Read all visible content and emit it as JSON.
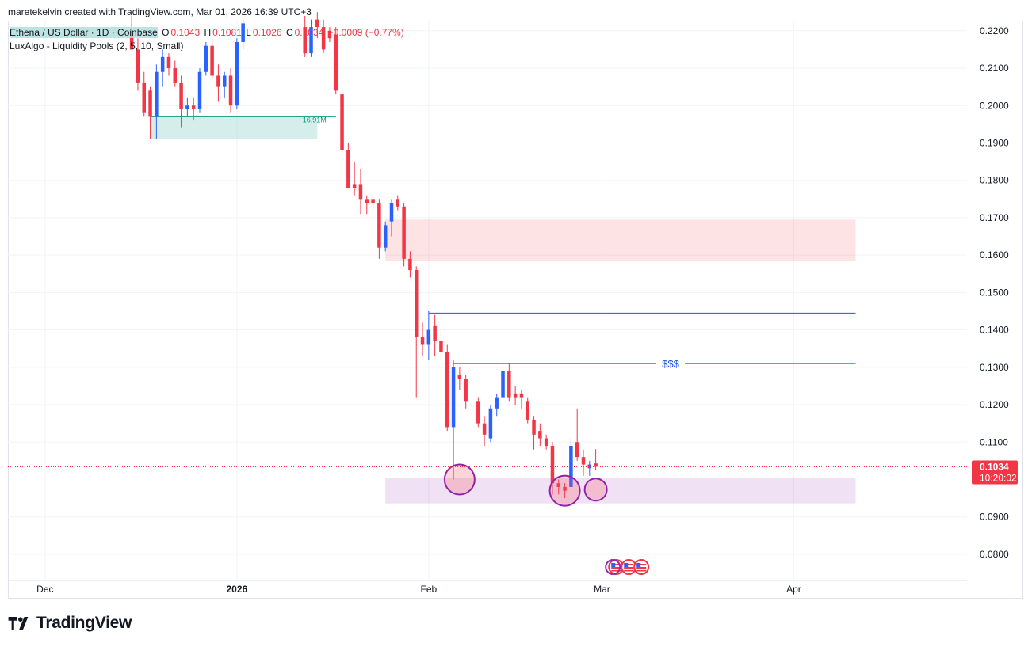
{
  "credit": "maretekelvin created with TradingView.com, Mar 01, 2026 16:39 UTC+3",
  "legend": {
    "symbol": "Ethena / US Dollar · 1D · Coinbase",
    "o_label": "O",
    "o": "0.1043",
    "h_label": "H",
    "h": "0.1081",
    "l_label": "L",
    "l": "0.1026",
    "c_label": "C",
    "c": "0.1034",
    "change": "−0.0009 (−0.77%)",
    "indicator": "LuxAlgo - Liquidity Pools (2, 5, 10, Small)"
  },
  "brand": "TradingView",
  "colors": {
    "up": "#2962ff",
    "down": "#f23645",
    "grid": "#f0f3fa",
    "level": "#1e53e5"
  },
  "chart_data": {
    "type": "candlestick",
    "title": "Ethena / US Dollar · 1D · Coinbase",
    "y_range": [
      0.073,
      0.2225
    ],
    "y_ticks": [
      "0.2200",
      "0.2100",
      "0.2000",
      "0.1900",
      "0.1800",
      "0.1700",
      "0.1600",
      "0.1500",
      "0.1400",
      "0.1300",
      "0.1200",
      "0.1100",
      "0.0900",
      "0.0800"
    ],
    "x_ticks": [
      {
        "label": "Dec",
        "day": 0
      },
      {
        "label": "2026",
        "day": 31
      },
      {
        "label": "Feb",
        "day": 62
      },
      {
        "label": "Mar",
        "day": 90
      },
      {
        "label": "Apr",
        "day": 121
      }
    ],
    "x_day_range": [
      -6,
      149
    ],
    "candles": [
      {
        "d": 14,
        "o": 0.22,
        "h": 0.224,
        "l": 0.215,
        "c": 0.215
      },
      {
        "d": 15,
        "o": 0.215,
        "h": 0.218,
        "l": 0.204,
        "c": 0.206
      },
      {
        "d": 16,
        "o": 0.206,
        "h": 0.209,
        "l": 0.197,
        "c": 0.198
      },
      {
        "d": 17,
        "o": 0.204,
        "h": 0.205,
        "l": 0.191,
        "c": 0.197
      },
      {
        "d": 18,
        "o": 0.197,
        "h": 0.211,
        "l": 0.191,
        "c": 0.209
      },
      {
        "d": 19,
        "o": 0.209,
        "h": 0.215,
        "l": 0.205,
        "c": 0.213
      },
      {
        "d": 20,
        "o": 0.213,
        "h": 0.214,
        "l": 0.208,
        "c": 0.21
      },
      {
        "d": 21,
        "o": 0.21,
        "h": 0.212,
        "l": 0.205,
        "c": 0.206
      },
      {
        "d": 22,
        "o": 0.206,
        "h": 0.208,
        "l": 0.194,
        "c": 0.199
      },
      {
        "d": 23,
        "o": 0.199,
        "h": 0.202,
        "l": 0.197,
        "c": 0.2
      },
      {
        "d": 24,
        "o": 0.2,
        "h": 0.202,
        "l": 0.196,
        "c": 0.199
      },
      {
        "d": 25,
        "o": 0.199,
        "h": 0.21,
        "l": 0.198,
        "c": 0.209
      },
      {
        "d": 26,
        "o": 0.209,
        "h": 0.217,
        "l": 0.208,
        "c": 0.216
      },
      {
        "d": 27,
        "o": 0.216,
        "h": 0.218,
        "l": 0.207,
        "c": 0.208
      },
      {
        "d": 28,
        "o": 0.208,
        "h": 0.211,
        "l": 0.201,
        "c": 0.205
      },
      {
        "d": 29,
        "o": 0.205,
        "h": 0.209,
        "l": 0.202,
        "c": 0.208
      },
      {
        "d": 30,
        "o": 0.208,
        "h": 0.21,
        "l": 0.198,
        "c": 0.2
      },
      {
        "d": 31,
        "o": 0.2,
        "h": 0.218,
        "l": 0.199,
        "c": 0.217
      },
      {
        "d": 32,
        "o": 0.217,
        "h": 0.223,
        "l": 0.215,
        "c": 0.222
      },
      {
        "d": 42,
        "o": 0.221,
        "h": 0.224,
        "l": 0.213,
        "c": 0.214
      },
      {
        "d": 43,
        "o": 0.214,
        "h": 0.223,
        "l": 0.213,
        "c": 0.221
      },
      {
        "d": 44,
        "o": 0.223,
        "h": 0.225,
        "l": 0.218,
        "c": 0.221
      },
      {
        "d": 45,
        "o": 0.221,
        "h": 0.223,
        "l": 0.214,
        "c": 0.215
      },
      {
        "d": 46,
        "o": 0.22,
        "h": 0.221,
        "l": 0.217,
        "c": 0.218
      },
      {
        "d": 47,
        "o": 0.219,
        "h": 0.221,
        "l": 0.203,
        "c": 0.204
      },
      {
        "d": 48,
        "o": 0.203,
        "h": 0.205,
        "l": 0.187,
        "c": 0.188
      },
      {
        "d": 49,
        "o": 0.188,
        "h": 0.19,
        "l": 0.178,
        "c": 0.178
      },
      {
        "d": 50,
        "o": 0.179,
        "h": 0.185,
        "l": 0.176,
        "c": 0.178
      },
      {
        "d": 51,
        "o": 0.179,
        "h": 0.183,
        "l": 0.171,
        "c": 0.175
      },
      {
        "d": 52,
        "o": 0.175,
        "h": 0.176,
        "l": 0.171,
        "c": 0.174
      },
      {
        "d": 53,
        "o": 0.175,
        "h": 0.176,
        "l": 0.172,
        "c": 0.174
      },
      {
        "d": 54,
        "o": 0.174,
        "h": 0.175,
        "l": 0.159,
        "c": 0.162
      },
      {
        "d": 55,
        "o": 0.162,
        "h": 0.169,
        "l": 0.161,
        "c": 0.168
      },
      {
        "d": 56,
        "o": 0.169,
        "h": 0.175,
        "l": 0.165,
        "c": 0.174
      },
      {
        "d": 57,
        "o": 0.175,
        "h": 0.176,
        "l": 0.172,
        "c": 0.173
      },
      {
        "d": 58,
        "o": 0.173,
        "h": 0.174,
        "l": 0.157,
        "c": 0.159
      },
      {
        "d": 59,
        "o": 0.159,
        "h": 0.161,
        "l": 0.154,
        "c": 0.156
      },
      {
        "d": 60,
        "o": 0.156,
        "h": 0.157,
        "l": 0.122,
        "c": 0.138
      },
      {
        "d": 61,
        "o": 0.138,
        "h": 0.142,
        "l": 0.133,
        "c": 0.136
      },
      {
        "d": 62,
        "o": 0.136,
        "h": 0.145,
        "l": 0.132,
        "c": 0.14
      },
      {
        "d": 63,
        "o": 0.141,
        "h": 0.144,
        "l": 0.133,
        "c": 0.137
      },
      {
        "d": 64,
        "o": 0.137,
        "h": 0.14,
        "l": 0.132,
        "c": 0.134
      },
      {
        "d": 65,
        "o": 0.134,
        "h": 0.136,
        "l": 0.113,
        "c": 0.114
      },
      {
        "d": 66,
        "o": 0.114,
        "h": 0.132,
        "l": 0.1,
        "c": 0.13
      },
      {
        "d": 67,
        "o": 0.128,
        "h": 0.13,
        "l": 0.124,
        "c": 0.127
      },
      {
        "d": 68,
        "o": 0.127,
        "h": 0.128,
        "l": 0.119,
        "c": 0.121
      },
      {
        "d": 69,
        "o": 0.12,
        "h": 0.122,
        "l": 0.118,
        "c": 0.12
      },
      {
        "d": 70,
        "o": 0.121,
        "h": 0.122,
        "l": 0.114,
        "c": 0.115
      },
      {
        "d": 71,
        "o": 0.115,
        "h": 0.117,
        "l": 0.109,
        "c": 0.112
      },
      {
        "d": 72,
        "o": 0.111,
        "h": 0.12,
        "l": 0.11,
        "c": 0.119
      },
      {
        "d": 73,
        "o": 0.119,
        "h": 0.123,
        "l": 0.117,
        "c": 0.122
      },
      {
        "d": 74,
        "o": 0.122,
        "h": 0.131,
        "l": 0.121,
        "c": 0.129
      },
      {
        "d": 75,
        "o": 0.129,
        "h": 0.131,
        "l": 0.121,
        "c": 0.122
      },
      {
        "d": 76,
        "o": 0.123,
        "h": 0.125,
        "l": 0.12,
        "c": 0.122
      },
      {
        "d": 77,
        "o": 0.123,
        "h": 0.124,
        "l": 0.119,
        "c": 0.122
      },
      {
        "d": 78,
        "o": 0.121,
        "h": 0.122,
        "l": 0.115,
        "c": 0.116
      },
      {
        "d": 79,
        "o": 0.116,
        "h": 0.117,
        "l": 0.108,
        "c": 0.112
      },
      {
        "d": 80,
        "o": 0.113,
        "h": 0.115,
        "l": 0.109,
        "c": 0.111
      },
      {
        "d": 81,
        "o": 0.111,
        "h": 0.112,
        "l": 0.108,
        "c": 0.109
      },
      {
        "d": 82,
        "o": 0.109,
        "h": 0.11,
        "l": 0.096,
        "c": 0.099
      },
      {
        "d": 83,
        "o": 0.099,
        "h": 0.1,
        "l": 0.096,
        "c": 0.098
      },
      {
        "d": 84,
        "o": 0.098,
        "h": 0.099,
        "l": 0.095,
        "c": 0.097
      },
      {
        "d": 85,
        "o": 0.098,
        "h": 0.111,
        "l": 0.098,
        "c": 0.109
      },
      {
        "d": 86,
        "o": 0.11,
        "h": 0.119,
        "l": 0.105,
        "c": 0.106
      },
      {
        "d": 87,
        "o": 0.106,
        "h": 0.108,
        "l": 0.101,
        "c": 0.104
      },
      {
        "d": 88,
        "o": 0.103,
        "h": 0.105,
        "l": 0.101,
        "c": 0.104
      },
      {
        "d": 89,
        "o": 0.1043,
        "h": 0.1081,
        "l": 0.1026,
        "c": 0.1034
      }
    ],
    "zones": [
      {
        "name": "liquidity-zone-top",
        "from_day": 17,
        "to_day": 44,
        "low": 0.191,
        "high": 0.197,
        "color": "rgba(178,223,219,0.55)"
      },
      {
        "name": "supply-zone",
        "from_day": 55,
        "to_day": 131,
        "low": 0.1585,
        "high": 0.1695,
        "color": "rgba(247,82,95,0.16)"
      },
      {
        "name": "demand-zone",
        "from_day": 55,
        "to_day": 131,
        "low": 0.0936,
        "high": 0.1004,
        "color": "rgba(186,104,200,0.20)"
      }
    ],
    "levels": [
      {
        "name": "liquidity-line-top",
        "from_day": 17,
        "to_day": 47,
        "price": 0.197,
        "color": "#089981"
      },
      {
        "name": "liquidity-line-1445",
        "from_day": 62,
        "to_day": 131,
        "price": 0.1445,
        "color": "#1e53e5"
      },
      {
        "name": "liquidity-line-131",
        "from_day": 66,
        "to_day": 131,
        "price": 0.131,
        "color": "#1e53e5"
      }
    ],
    "last_price": "0.1034",
    "countdown": "10:20:02",
    "volume_label": "16.91M",
    "dollar_label": "$$$",
    "circles": [
      {
        "day": 67,
        "price": 0.1,
        "r": 19
      },
      {
        "day": 84,
        "price": 0.097,
        "r": 19
      },
      {
        "day": 89,
        "price": 0.0973,
        "r": 14
      }
    ],
    "event_day": 91
  }
}
